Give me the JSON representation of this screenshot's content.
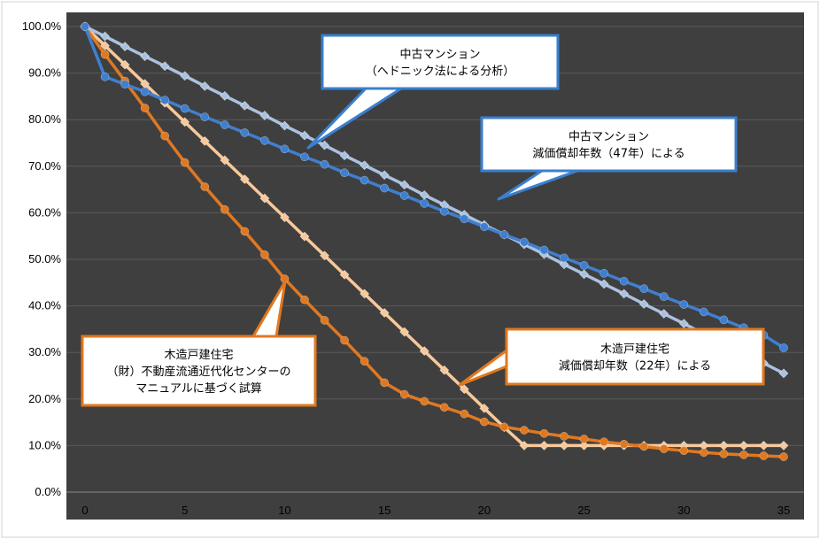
{
  "chart_data": {
    "type": "line",
    "title": "",
    "xlabel": "",
    "ylabel": "",
    "xlim": [
      0,
      35
    ],
    "ylim": [
      0,
      100
    ],
    "x_ticks": [
      0,
      5,
      10,
      15,
      20,
      25,
      30,
      35
    ],
    "y_ticks": [
      "0.0%",
      "10.0%",
      "20.0%",
      "30.0%",
      "40.0%",
      "50.0%",
      "60.0%",
      "70.0%",
      "80.0%",
      "90.0%",
      "100.0%"
    ],
    "grid": true,
    "colors": {
      "background": "#3f3f3f",
      "gridline": "#5a5a5a",
      "light_blue": "#aac2e0",
      "blue": "#3f7fd0",
      "light_orange": "#f8c89a",
      "orange": "#e07820",
      "callout_blue_border": "#3a7fd0",
      "callout_orange_border": "#e07820"
    },
    "series": [
      {
        "name": "",
        "color_key": "light_blue",
        "marker": "diamond",
        "x": [
          0,
          1,
          2,
          3,
          4,
          5,
          6,
          7,
          8,
          9,
          10,
          11,
          12,
          13,
          14,
          15,
          16,
          17,
          18,
          19,
          20,
          21,
          22,
          23,
          24,
          25,
          26,
          27,
          28,
          29,
          30,
          31,
          32,
          33,
          34,
          35
        ],
        "values": [
          100,
          97.9,
          95.7,
          93.6,
          91.5,
          89.4,
          87.2,
          85.1,
          83.0,
          80.9,
          78.7,
          76.6,
          74.5,
          72.3,
          70.2,
          68.1,
          66.0,
          63.8,
          61.7,
          59.6,
          57.4,
          55.3,
          53.2,
          51.1,
          48.9,
          46.8,
          44.7,
          42.6,
          40.4,
          38.3,
          36.2,
          34.0,
          31.9,
          29.8,
          27.7,
          25.5
        ]
      },
      {
        "name": "",
        "color_key": "blue",
        "marker": "circle",
        "x": [
          0,
          1,
          2,
          3,
          4,
          5,
          6,
          7,
          8,
          9,
          10,
          11,
          12,
          13,
          14,
          15,
          16,
          17,
          18,
          19,
          20,
          21,
          22,
          23,
          24,
          25,
          26,
          27,
          28,
          29,
          30,
          31,
          32,
          33,
          34,
          35
        ],
        "values": [
          100,
          89.2,
          87.6,
          86.0,
          84.2,
          82.4,
          80.6,
          78.9,
          77.2,
          75.5,
          73.7,
          72.0,
          70.4,
          68.6,
          67.0,
          65.3,
          63.7,
          62.0,
          60.3,
          58.7,
          57.0,
          55.3,
          53.7,
          52.0,
          50.3,
          48.7,
          47.0,
          45.3,
          43.7,
          42.0,
          40.3,
          38.7,
          37.0,
          35.3,
          33.7,
          31.0
        ]
      },
      {
        "name": "",
        "color_key": "light_orange",
        "marker": "diamond",
        "x": [
          0,
          1,
          2,
          3,
          4,
          5,
          6,
          7,
          8,
          9,
          10,
          11,
          12,
          13,
          14,
          15,
          16,
          17,
          18,
          19,
          20,
          21,
          22,
          23,
          24,
          25,
          26,
          27,
          28,
          29,
          30,
          31,
          32,
          33,
          34,
          35
        ],
        "values": [
          100,
          95.9,
          91.8,
          87.7,
          83.6,
          79.5,
          75.4,
          71.3,
          67.2,
          63.1,
          59.0,
          54.9,
          50.8,
          46.7,
          42.6,
          38.5,
          34.4,
          30.3,
          26.2,
          22.1,
          18.0,
          13.9,
          10,
          10,
          10,
          10,
          10,
          10,
          10,
          10,
          10,
          10,
          10,
          10,
          10,
          10
        ]
      },
      {
        "name": "",
        "color_key": "orange",
        "marker": "circle",
        "x": [
          0,
          1,
          2,
          3,
          4,
          5,
          6,
          7,
          8,
          9,
          10,
          11,
          12,
          13,
          14,
          15,
          16,
          17,
          18,
          19,
          20,
          21,
          22,
          23,
          24,
          25,
          26,
          27,
          28,
          29,
          30,
          31,
          32,
          33,
          34,
          35
        ],
        "values": [
          100,
          94.0,
          88.3,
          82.5,
          76.5,
          70.8,
          65.6,
          60.7,
          56.0,
          51.0,
          45.8,
          41.3,
          36.9,
          32.6,
          28.1,
          23.5,
          21.0,
          19.5,
          18.2,
          16.8,
          15.1,
          14.0,
          13.3,
          12.6,
          12.0,
          11.4,
          10.8,
          10.3,
          9.8,
          9.3,
          8.9,
          8.5,
          8.2,
          8.0,
          7.8,
          7.6
        ]
      }
    ],
    "annotations": [
      {
        "id": "callout-mansion-hedonic",
        "style": "blue",
        "lines": [
          "中古マンション",
          "（ヘドニック法による分析）"
        ]
      },
      {
        "id": "callout-mansion-depreciation",
        "style": "blue",
        "lines": [
          "中古マンション",
          "減価償却年数（47年）による"
        ]
      },
      {
        "id": "callout-wooden-manual",
        "style": "orange",
        "lines": [
          "木造戸建住宅",
          "（財）不動産流通近代化センターの",
          "マニュアルに基づく試算"
        ]
      },
      {
        "id": "callout-wooden-depreciation",
        "style": "orange",
        "lines": [
          "木造戸建住宅",
          "減価償却年数（22年）による"
        ]
      }
    ]
  }
}
